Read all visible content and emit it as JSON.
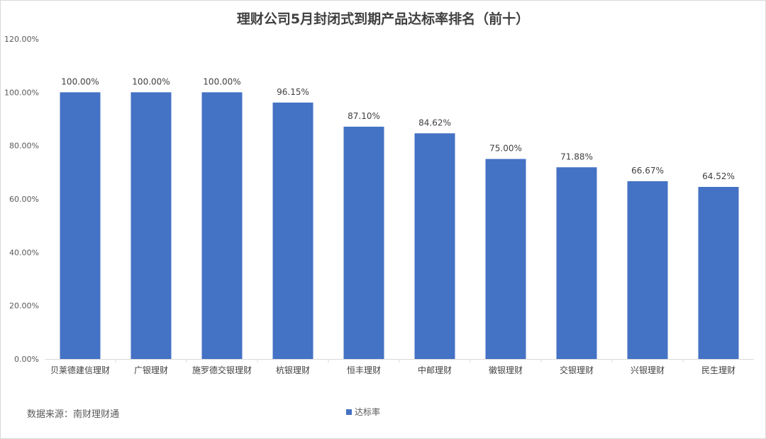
{
  "chart_data": {
    "type": "bar",
    "title": "理财公司5月封闭式到期产品达标率排名（前十）",
    "categories": [
      "贝莱德建信理财",
      "广银理财",
      "施罗德交银理财",
      "杭银理财",
      "恒丰理财",
      "中邮理财",
      "徽银理财",
      "交银理财",
      "兴银理财",
      "民生理财"
    ],
    "series": [
      {
        "name": "达标率",
        "values": [
          100.0,
          100.0,
          100.0,
          96.15,
          87.1,
          84.62,
          75.0,
          71.88,
          66.67,
          64.52
        ],
        "labels": [
          "100.00%",
          "100.00%",
          "100.00%",
          "96.15%",
          "87.10%",
          "84.62%",
          "75.00%",
          "71.88%",
          "66.67%",
          "64.52%"
        ]
      }
    ],
    "ylim": [
      0,
      120
    ],
    "yticks": [
      "0.00%",
      "20.00%",
      "40.00%",
      "60.00%",
      "80.00%",
      "100.00%",
      "120.00%"
    ],
    "ytick_values": [
      0,
      20,
      40,
      60,
      80,
      100,
      120
    ],
    "legend_position": "bottom",
    "grid": false,
    "bar_color": "#4472C4"
  },
  "source": "数据来源：南财理财通"
}
